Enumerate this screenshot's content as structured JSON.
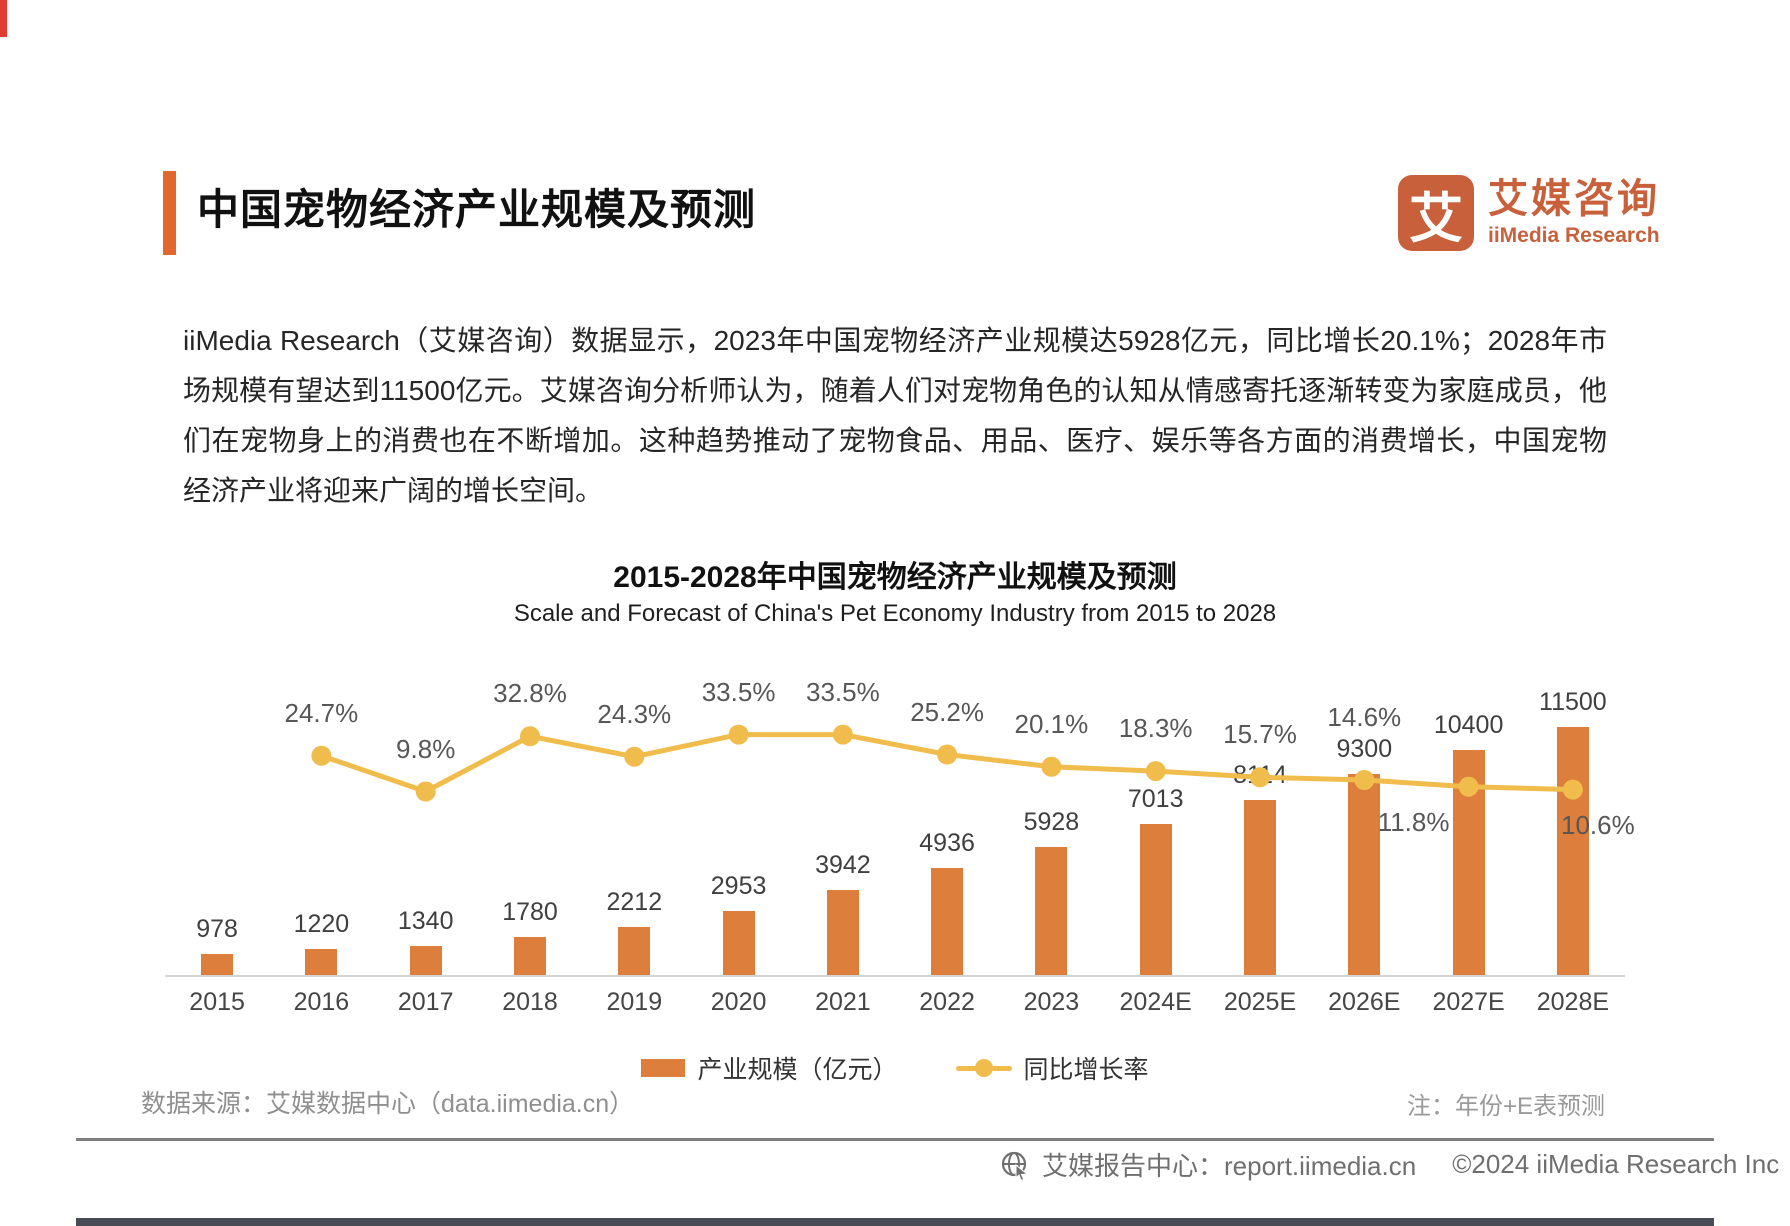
{
  "page": {
    "header": {
      "title": "中国宠物经济产业规模及预测"
    },
    "logo": {
      "glyph": "艾",
      "name_cn": "艾媒咨询",
      "name_en": "iiMedia Research"
    },
    "intro_paragraph": "iiMedia Research（艾媒咨询）数据显示，2023年中国宠物经济产业规模达5928亿元，同比增长20.1%；2028年市场规模有望达到11500亿元。艾媒咨询分析师认为，随着人们对宠物角色的认知从情感寄托逐渐转变为家庭成员，他们在宠物身上的消费也在不断增加。这种趋势推动了宠物食品、用品、医疗、娱乐等各方面的消费增长，中国宠物经济产业将迎来广阔的增长空间。",
    "source": "数据来源：艾媒数据中心（data.iimedia.cn）",
    "forecast_note": "注：年份+E表预测",
    "footer": {
      "report_center": "艾媒报告中心：report.iimedia.cn",
      "copyright": "©2024  iiMedia Research  Inc"
    }
  },
  "chart_data": {
    "type": "bar+line",
    "title": "2015-2028年中国宠物经济产业规模及预测",
    "subtitle": "Scale and Forecast of China's Pet Economy Industry from 2015 to 2028",
    "categories": [
      "2015",
      "2016",
      "2017",
      "2018",
      "2019",
      "2020",
      "2021",
      "2022",
      "2023",
      "2024E",
      "2025E",
      "2026E",
      "2027E",
      "2028E"
    ],
    "series": [
      {
        "name": "产业规模（亿元）",
        "type": "bar",
        "color": "#dd7e3c",
        "values": [
          978,
          1220,
          1340,
          1780,
          2212,
          2953,
          3942,
          4936,
          5928,
          7013,
          8114,
          9300,
          10400,
          11500
        ]
      },
      {
        "name": "同比增长率",
        "type": "line",
        "color": "#f0bc4b",
        "label_format": "percent",
        "values": [
          null,
          24.7,
          9.8,
          32.8,
          24.3,
          33.5,
          33.5,
          25.2,
          20.1,
          18.3,
          15.7,
          14.6,
          11.8,
          10.6
        ]
      }
    ],
    "legend_position": "bottom",
    "y_axis_visible": false,
    "gridlines": false
  }
}
